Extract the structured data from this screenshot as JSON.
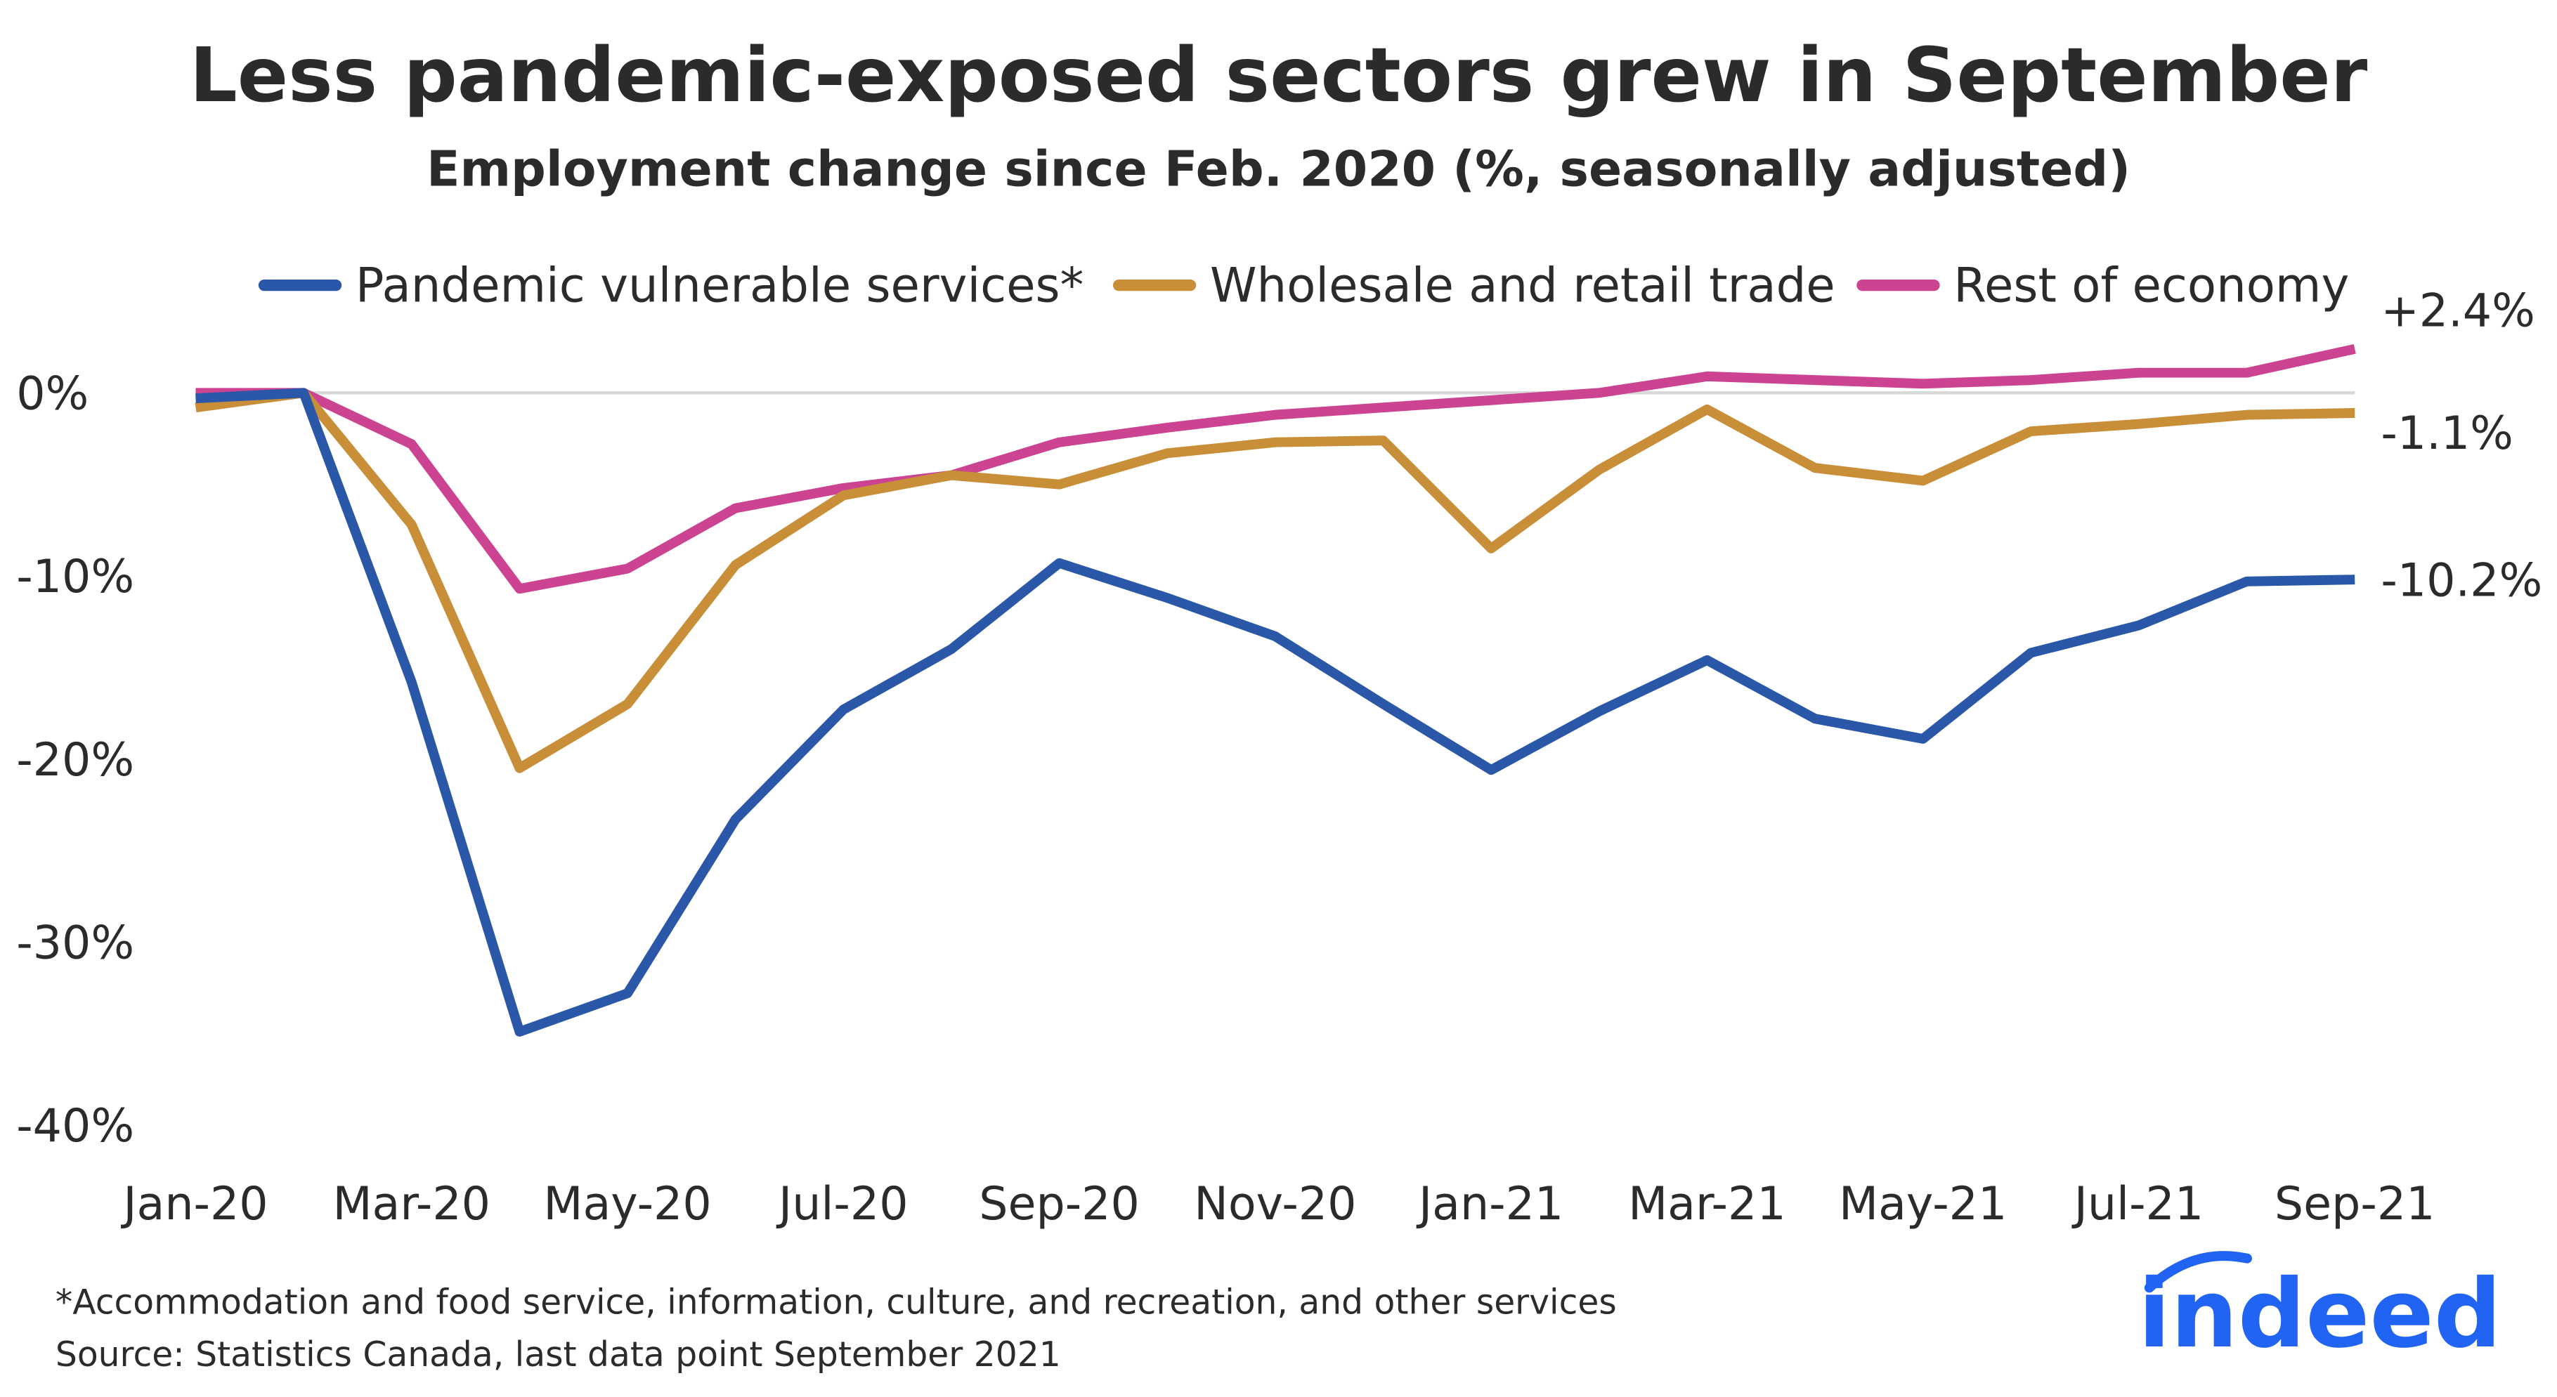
{
  "chart_data": {
    "type": "line",
    "title": "Less pandemic-exposed sectors grew in September",
    "subtitle": "Employment change since Feb. 2020 (%, seasonally adjusted)",
    "x": [
      "Jan-20",
      "Feb-20",
      "Mar-20",
      "Apr-20",
      "May-20",
      "Jun-20",
      "Jul-20",
      "Aug-20",
      "Sep-20",
      "Oct-20",
      "Nov-20",
      "Dec-20",
      "Jan-21",
      "Feb-21",
      "Mar-21",
      "Apr-21",
      "May-21",
      "Jun-21",
      "Jul-21",
      "Aug-21",
      "Sep-21"
    ],
    "x_tick_labels": [
      "Jan-20",
      "Mar-20",
      "May-20",
      "Jul-20",
      "Sep-20",
      "Nov-20",
      "Jan-21",
      "Mar-21",
      "May-21",
      "Jul-21",
      "Sep-21"
    ],
    "y_tick_labels": [
      "0%",
      "-10%",
      "-20%",
      "-30%",
      "-40%"
    ],
    "y_ticks": [
      0,
      -10,
      -20,
      -30,
      -40
    ],
    "ylim": [
      -40,
      2.5
    ],
    "grid": false,
    "legend_placement": "top",
    "series": [
      {
        "name": "Pandemic vulnerable services*",
        "color": "#2a57a7",
        "end_label": "-10.2%",
        "values": [
          -0.3,
          0,
          -15.8,
          -34.9,
          -32.8,
          -23.3,
          -17.3,
          -14.0,
          -9.3,
          -11.2,
          -13.3,
          -17.0,
          -20.6,
          -17.4,
          -14.6,
          -17.8,
          -18.9,
          -14.2,
          -12.7,
          -10.3,
          -10.2
        ]
      },
      {
        "name": "Wholesale and retail trade",
        "color": "#c98f38",
        "end_label": "-1.1%",
        "values": [
          -0.8,
          0,
          -7.2,
          -20.5,
          -17.0,
          -9.4,
          -5.6,
          -4.5,
          -5.0,
          -3.3,
          -2.7,
          -2.6,
          -8.5,
          -4.2,
          -0.9,
          -4.1,
          -4.8,
          -2.1,
          -1.7,
          -1.2,
          -1.1
        ]
      },
      {
        "name": "Rest of economy",
        "color": "#cc4391",
        "end_label": "+2.4%",
        "values": [
          0,
          0,
          -2.8,
          -10.7,
          -9.6,
          -6.3,
          -5.2,
          -4.5,
          -2.7,
          -1.9,
          -1.2,
          -0.8,
          -0.4,
          0,
          0.9,
          0.7,
          0.5,
          0.7,
          1.1,
          1.1,
          2.4
        ]
      }
    ]
  },
  "footnote": "*Accommodation and food service, information, culture, and recreation, and other services",
  "source": "Source: Statistics Canada, last data point September 2021",
  "logo": "indeed"
}
